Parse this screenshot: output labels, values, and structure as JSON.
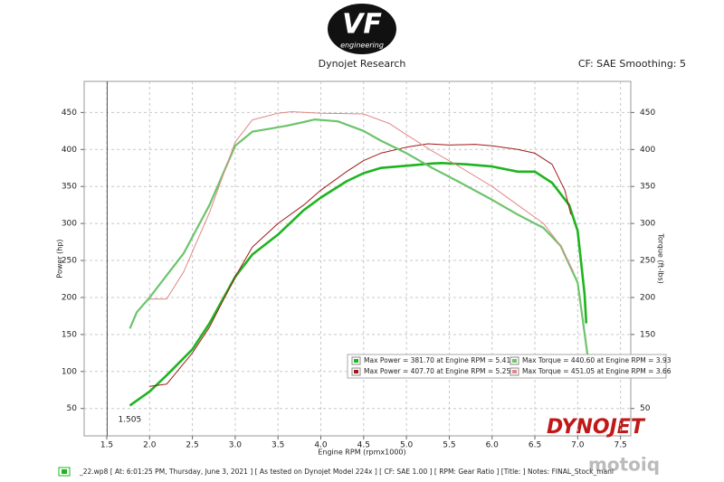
{
  "chart_data": {
    "type": "line",
    "title": "Dynojet Research",
    "subtitle": "CF: SAE Smoothing: 5",
    "logos": {
      "vf": "VF",
      "vf_sub": "engineering",
      "dynojet": "DYNOJET",
      "motoiq": "motoiq"
    },
    "x_label": "Engine RPM (rpmx1000)",
    "y_label": "Power (hp)",
    "y2_label": "Torque (ft-lbs)",
    "footer": "_22.wp8 [ At: 6:01:25 PM, Thursday, June 3, 2021 ] [ As tested on Dynojet Model 224x ] [ CF: SAE 1.00 ] [ RPM: Gear Ratio ] [Title: ]  Notes: FINAL_Stock_mani",
    "cursor": {
      "value": 1.505,
      "label": "1.505"
    },
    "xlim": [
      1.236,
      7.62
    ],
    "xticks": [
      1.5,
      {
        "value": 2,
        "label": "2.0"
      },
      2.5,
      {
        "value": 3,
        "label": "3.0"
      },
      3.5,
      {
        "value": 4,
        "label": "4.0"
      },
      4.5,
      {
        "value": 5,
        "label": "5.0"
      },
      5.5,
      {
        "value": 6,
        "label": "6.0"
      },
      6.5,
      {
        "value": 7,
        "label": "7.0"
      },
      7.5
    ],
    "ylim": [
      13,
      492
    ],
    "yticks": [
      50,
      100,
      150,
      200,
      250,
      300,
      350,
      400,
      450
    ],
    "y2lim": [
      13,
      492
    ],
    "y2ticks": [
      50,
      100,
      150,
      200,
      250,
      300,
      350,
      400,
      450
    ],
    "grid": true,
    "series": [
      {
        "name": "Max Power = 381.70 at Engine RPM = 5.41",
        "color": "#1eb41e",
        "line_width": 2.6,
        "x": [
          1.77,
          2.0,
          2.2,
          2.5,
          2.7,
          3.0,
          3.2,
          3.5,
          3.8,
          4.0,
          4.3,
          4.5,
          4.7,
          5.0,
          5.3,
          5.41,
          5.7,
          6.0,
          6.3,
          6.5,
          6.7,
          6.9,
          7.0,
          7.08,
          7.1
        ],
        "values": [
          54,
          73,
          95,
          130,
          165,
          228,
          258,
          285,
          318,
          335,
          357,
          368,
          375,
          378,
          381,
          381.7,
          380,
          377,
          370,
          370,
          355,
          325,
          290,
          205,
          165
        ]
      },
      {
        "name": "Max Power = 407.70 at Engine RPM = 5.25",
        "color": "#a01818",
        "line_width": 1,
        "x": [
          2.0,
          2.2,
          2.5,
          2.7,
          3.0,
          3.2,
          3.5,
          3.8,
          4.0,
          4.3,
          4.5,
          4.7,
          5.0,
          5.25,
          5.5,
          5.8,
          6.0,
          6.3,
          6.5,
          6.7,
          6.85,
          6.92
        ],
        "values": [
          80,
          83,
          125,
          160,
          228,
          268,
          300,
          325,
          345,
          370,
          385,
          395,
          403,
          407.7,
          406,
          407,
          405,
          400,
          395,
          380,
          345,
          312
        ]
      },
      {
        "name": "Max Torque = 440.60 at Engine RPM = 3.93",
        "color": "#6cc46c",
        "line_width": 2.2,
        "axis": "y2",
        "x": [
          1.77,
          1.85,
          2.0,
          2.2,
          2.4,
          2.7,
          3.0,
          3.2,
          3.4,
          3.6,
          3.8,
          3.93,
          4.2,
          4.5,
          4.7,
          5.0,
          5.3,
          5.6,
          6.0,
          6.3,
          6.6,
          6.8,
          7.0,
          7.12
        ],
        "values": [
          158,
          180,
          200,
          230,
          260,
          325,
          405,
          424,
          428,
          432,
          437,
          440.6,
          438,
          425,
          412,
          395,
          375,
          357,
          332,
          312,
          294,
          270,
          220,
          118
        ]
      },
      {
        "name": "Max Torque = 451.05 at Engine RPM = 3.66",
        "color": "#e08888",
        "line_width": 1,
        "axis": "y2",
        "x": [
          2.0,
          2.2,
          2.4,
          2.7,
          3.0,
          3.2,
          3.5,
          3.66,
          4.0,
          4.5,
          4.8,
          5.0,
          5.3,
          5.6,
          6.0,
          6.3,
          6.6,
          6.8,
          6.95
        ],
        "values": [
          198,
          198,
          235,
          315,
          410,
          440,
          449,
          451.05,
          449,
          448,
          435,
          420,
          398,
          378,
          350,
          325,
          300,
          270,
          235
        ]
      }
    ]
  }
}
